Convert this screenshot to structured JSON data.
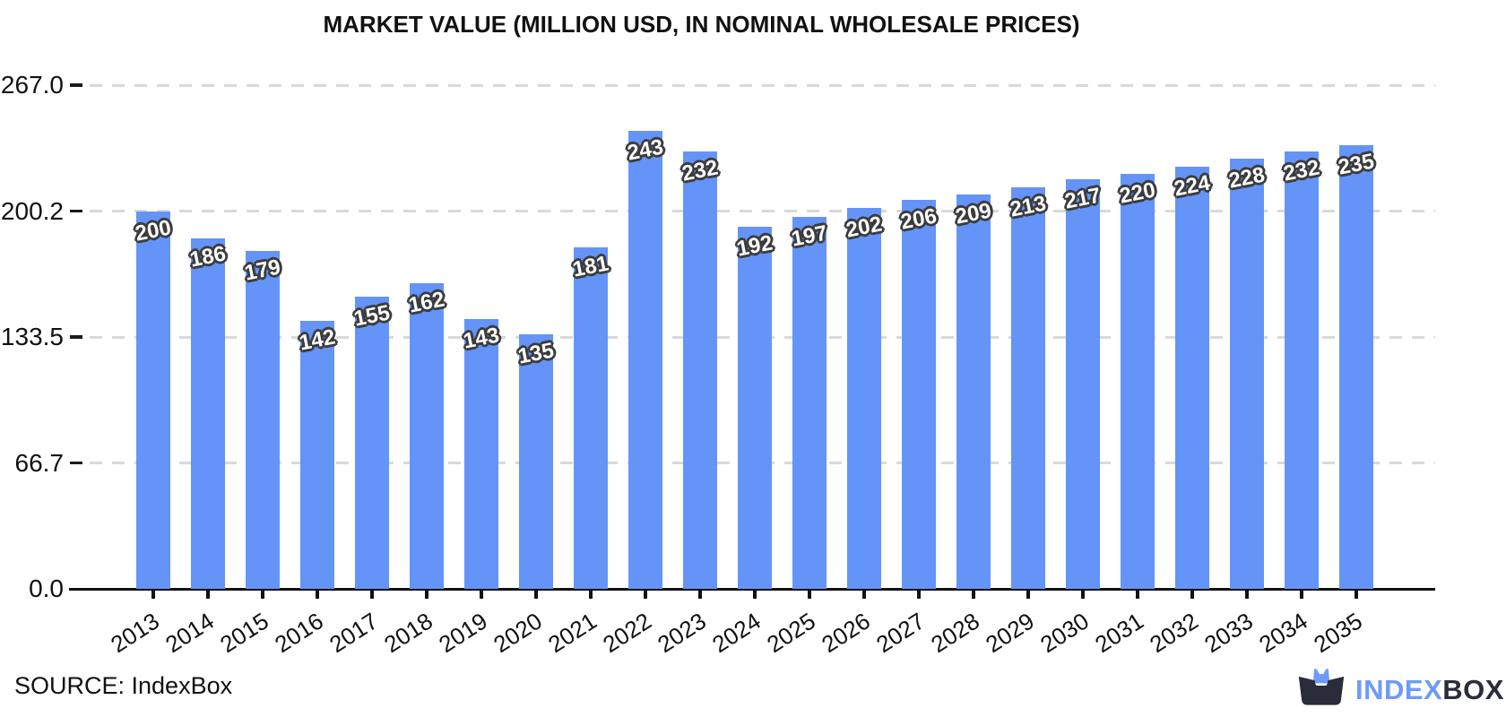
{
  "chart_data": {
    "type": "bar",
    "title": "MARKET VALUE (MILLION USD, IN NOMINAL WHOLESALE PRICES)",
    "categories": [
      "2013",
      "2014",
      "2015",
      "2016",
      "2017",
      "2018",
      "2019",
      "2020",
      "2021",
      "2022",
      "2023",
      "2024",
      "2025",
      "2026",
      "2027",
      "2028",
      "2029",
      "2030",
      "2031",
      "2032",
      "2033",
      "2034",
      "2035"
    ],
    "values": [
      200,
      186,
      179,
      142,
      155,
      162,
      143,
      135,
      181,
      243,
      232,
      192,
      197,
      202,
      206,
      209,
      213,
      217,
      220,
      224,
      228,
      232,
      235
    ],
    "xlabel": "",
    "ylabel": "",
    "y_ticks": [
      0.0,
      66.7,
      133.5,
      200.2,
      267.0
    ],
    "y_tick_labels": [
      "0.0",
      "66.7",
      "133.5",
      "200.2",
      "267.0"
    ],
    "ylim": [
      0,
      267
    ],
    "grid": "horizontal-dashed",
    "legend": "none",
    "bar_color": "#6494f8",
    "value_label_fill": "#ffffff",
    "value_label_outline": "#3c3c3c"
  },
  "footer": {
    "source": "SOURCE: IndexBox",
    "logo": {
      "index": "INDEX",
      "box": "BOX",
      "icon": "indexbox-cat-box-icon",
      "brand_blue": "#6c9cf8",
      "brand_dark": "#2a2d39"
    }
  }
}
